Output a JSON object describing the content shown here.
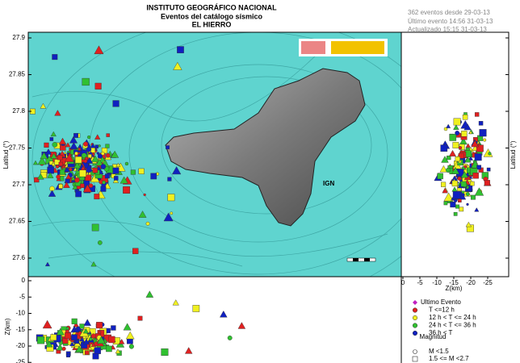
{
  "header": {
    "lines": [
      "INSTITUTO GEOGRÁFICO NACIONAL",
      "Eventos del catálogo sísmico",
      "EL HIERRO"
    ],
    "info": [
      "362 eventos desde 29-03-13",
      "Último evento 14:56 31-03-13",
      "Actualizado  15:15 31-03-13"
    ]
  },
  "map": {
    "lat_label": "Latitud (°)",
    "lat_ticks": [
      27.9,
      27.85,
      27.8,
      27.75,
      27.7,
      27.65,
      27.6
    ],
    "watermark": "IGN"
  },
  "right_panel": {
    "z_label": "Z(km)",
    "z_ticks": [
      0,
      -5,
      -10,
      -15,
      -20,
      -25
    ],
    "lat_label": "Latitud (°)"
  },
  "bottom_panel": {
    "z_label": "Z(km)",
    "z_ticks": [
      0,
      -5,
      -10,
      -15,
      -20,
      -25
    ]
  },
  "legend": {
    "items": [
      "Ultimo Evento",
      "T <=12 h",
      "12 h  < T <= 24 h",
      "24 h  < T <= 36 h",
      "36 h < T"
    ],
    "magnitude_title": "Magnitud",
    "magnitudes": [
      "M <1.5",
      "1.5 <= M <2.7"
    ]
  }
}
